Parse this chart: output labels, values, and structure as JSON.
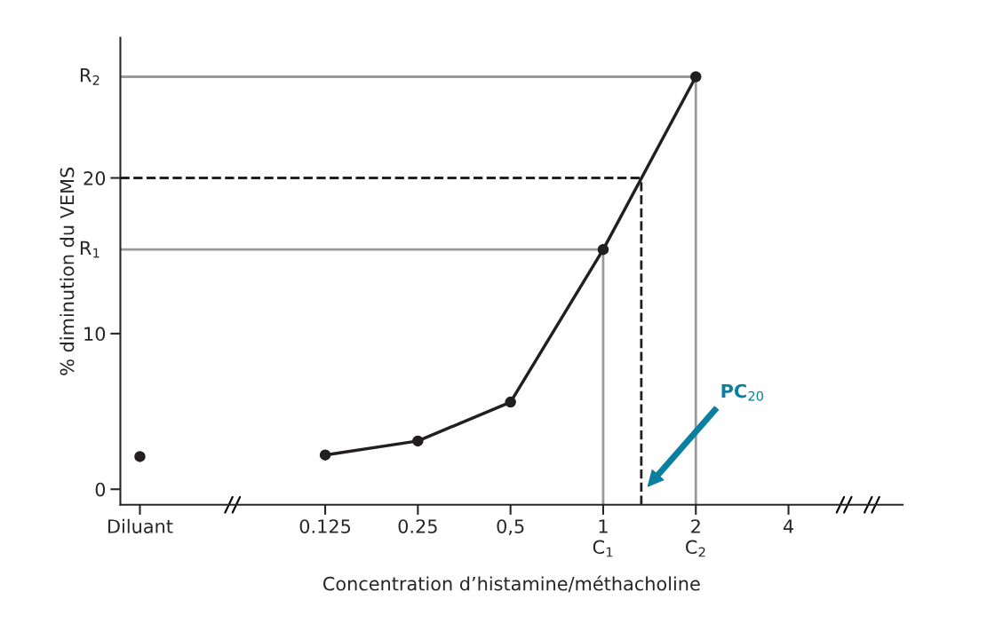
{
  "chart_data": {
    "type": "line",
    "xlabel": "Concentration d’histamine/méthacholine",
    "ylabel": "% diminution du VEMS",
    "series": [
      {
        "color": "#231f20",
        "x": [
          0.03125,
          0.0625,
          0.125,
          0.25,
          0.5,
          1,
          2
        ],
        "values": [
          2.1,
          null,
          2.2,
          3.1,
          5.6,
          15.4,
          26.5
        ]
      }
    ],
    "log": "x",
    "xlim": [
      0.027,
      9.4
    ],
    "xticks": [
      {
        "value": 0.03125,
        "label": "Diluant"
      },
      0.125,
      0.25,
      {
        "value": 0.5,
        "label": "0,5"
      },
      1,
      2,
      4
    ],
    "marker": "circle",
    "line_style": "solid",
    "ylim": [
      -1,
      29
    ],
    "yticks": [
      0,
      10,
      20
    ],
    "ref_lines": [
      {
        "axis": "y",
        "value": 15.4,
        "label": "R$_{1}$",
        "color": "#999999",
        "line_style": "solid"
      },
      {
        "axis": "y",
        "value": 20,
        "color": "#231f20",
        "line_style": "dashed"
      },
      {
        "axis": "y",
        "value": 26.5,
        "label": "R$_{2}$",
        "color": "#999999",
        "line_style": "solid"
      },
      {
        "axis": "x",
        "value": 1,
        "label": "C$_{1}$",
        "color": "#999999",
        "line_style": "solid"
      },
      {
        "axis": "x",
        "value": 1.33,
        "color": "#231f20",
        "line_style": "dashed"
      },
      {
        "axis": "x",
        "value": 2,
        "label": "C$_{2}$",
        "color": "#999999",
        "line_style": "solid"
      }
    ],
    "annotations": [
      "PC$_{20}$"
    ],
    "grid": false,
    "legend": false
  }
}
